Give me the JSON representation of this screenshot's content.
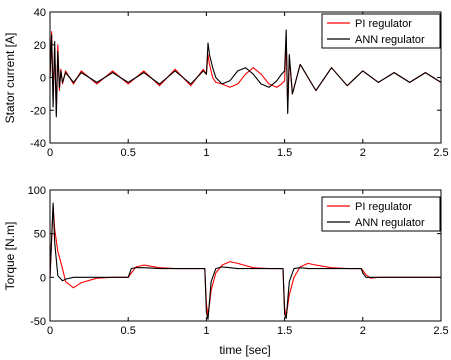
{
  "chart_data": [
    {
      "type": "line",
      "title": "",
      "xlabel": "",
      "ylabel": "Stator current [A]",
      "xlim": [
        0,
        2.5
      ],
      "ylim": [
        -40,
        40
      ],
      "xticks": [
        "0",
        "0.5",
        "1",
        "1.5",
        "2",
        "2.5"
      ],
      "yticks": [
        "-40",
        "-20",
        "0",
        "20",
        "40"
      ],
      "grid": false,
      "legend": "top-right",
      "series": [
        {
          "name": "PI regulator",
          "color": "#ff0000",
          "x": [
            0.0,
            0.01,
            0.02,
            0.03,
            0.04,
            0.05,
            0.06,
            0.07,
            0.08,
            0.1,
            0.15,
            0.2,
            0.3,
            0.4,
            0.5,
            0.6,
            0.7,
            0.8,
            0.9,
            0.98,
            1.0,
            1.01,
            1.02,
            1.04,
            1.06,
            1.1,
            1.15,
            1.2,
            1.25,
            1.3,
            1.35,
            1.4,
            1.45,
            1.48,
            1.5,
            1.51,
            1.52,
            1.53,
            1.55,
            1.6,
            1.7,
            1.8,
            1.9,
            2.0,
            2.1,
            2.2,
            2.3,
            2.4,
            2.5
          ],
          "y": [
            0,
            28,
            -10,
            18,
            -22,
            20,
            -8,
            5,
            -4,
            4,
            -4,
            4,
            -4,
            4,
            -4,
            4,
            -5,
            5,
            -5,
            5,
            2,
            14,
            8,
            0,
            -3,
            -4,
            -6,
            -4,
            2,
            6,
            2,
            -4,
            -6,
            -4,
            -2,
            24,
            -20,
            12,
            -10,
            8,
            -8,
            6,
            -5,
            4,
            -3,
            3,
            -3,
            3,
            -3
          ]
        },
        {
          "name": "ANN regulator",
          "color": "#000000",
          "x": [
            0.0,
            0.01,
            0.02,
            0.03,
            0.04,
            0.05,
            0.06,
            0.07,
            0.08,
            0.1,
            0.15,
            0.2,
            0.3,
            0.4,
            0.5,
            0.6,
            0.7,
            0.8,
            0.9,
            0.98,
            1.0,
            1.01,
            1.02,
            1.04,
            1.06,
            1.1,
            1.15,
            1.2,
            1.25,
            1.3,
            1.35,
            1.4,
            1.45,
            1.48,
            1.5,
            1.51,
            1.52,
            1.53,
            1.55,
            1.6,
            1.7,
            1.8,
            1.9,
            2.0,
            2.1,
            2.2,
            2.3,
            2.4,
            2.5
          ],
          "y": [
            0,
            26,
            -18,
            22,
            -24,
            16,
            -6,
            4,
            -3,
            3,
            -3,
            3,
            -3,
            3,
            -3,
            3,
            -4,
            4,
            -4,
            4,
            2,
            21,
            14,
            6,
            0,
            -4,
            -2,
            4,
            6,
            2,
            -4,
            -6,
            -2,
            2,
            4,
            29,
            -22,
            14,
            -10,
            8,
            -8,
            6,
            -5,
            4,
            -3,
            3,
            -3,
            3,
            -3
          ]
        }
      ]
    },
    {
      "type": "line",
      "title": "",
      "xlabel": "time [sec]",
      "ylabel": "Torque [N.m]",
      "xlim": [
        0,
        2.5
      ],
      "ylim": [
        -50,
        100
      ],
      "xticks": [
        "0",
        "0.5",
        "1",
        "1.5",
        "2",
        "2.5"
      ],
      "yticks": [
        "-50",
        "0",
        "50",
        "100"
      ],
      "grid": false,
      "legend": "top-right",
      "series": [
        {
          "name": "PI regulator",
          "color": "#ff0000",
          "x": [
            0.0,
            0.02,
            0.03,
            0.05,
            0.08,
            0.1,
            0.15,
            0.2,
            0.3,
            0.4,
            0.5,
            0.52,
            0.55,
            0.6,
            0.7,
            0.8,
            0.9,
            0.99,
            1.0,
            1.01,
            1.03,
            1.06,
            1.1,
            1.15,
            1.2,
            1.3,
            1.4,
            1.49,
            1.5,
            1.51,
            1.53,
            1.56,
            1.6,
            1.65,
            1.7,
            1.8,
            1.9,
            1.99,
            2.0,
            2.02,
            2.05,
            2.1,
            2.2,
            2.3,
            2.4,
            2.5
          ],
          "y": [
            0,
            82,
            55,
            30,
            10,
            -5,
            -12,
            -6,
            -1,
            0,
            0,
            5,
            12,
            14,
            11,
            10,
            10,
            10,
            -30,
            -45,
            -15,
            5,
            14,
            18,
            16,
            11,
            10,
            10,
            -35,
            -45,
            -20,
            0,
            12,
            16,
            14,
            11,
            10,
            10,
            8,
            3,
            -1,
            0,
            0,
            0,
            0,
            0
          ]
        },
        {
          "name": "ANN regulator",
          "color": "#000000",
          "x": [
            0.0,
            0.02,
            0.03,
            0.05,
            0.08,
            0.1,
            0.15,
            0.2,
            0.3,
            0.4,
            0.5,
            0.52,
            0.55,
            0.6,
            0.7,
            0.8,
            0.9,
            0.99,
            1.0,
            1.01,
            1.03,
            1.06,
            1.1,
            1.15,
            1.2,
            1.3,
            1.4,
            1.49,
            1.5,
            1.51,
            1.53,
            1.56,
            1.6,
            1.65,
            1.7,
            1.8,
            1.9,
            1.99,
            2.0,
            2.02,
            2.05,
            2.1,
            2.2,
            2.3,
            2.4,
            2.5
          ],
          "y": [
            0,
            85,
            40,
            2,
            -4,
            -2,
            0,
            0,
            0,
            0,
            0,
            10,
            11,
            11,
            10,
            10,
            10,
            10,
            -40,
            -48,
            -5,
            10,
            12,
            11,
            10,
            10,
            10,
            10,
            -42,
            -47,
            -5,
            10,
            11,
            10,
            10,
            10,
            10,
            10,
            5,
            0,
            0,
            0,
            0,
            0,
            0,
            0
          ]
        }
      ]
    }
  ]
}
